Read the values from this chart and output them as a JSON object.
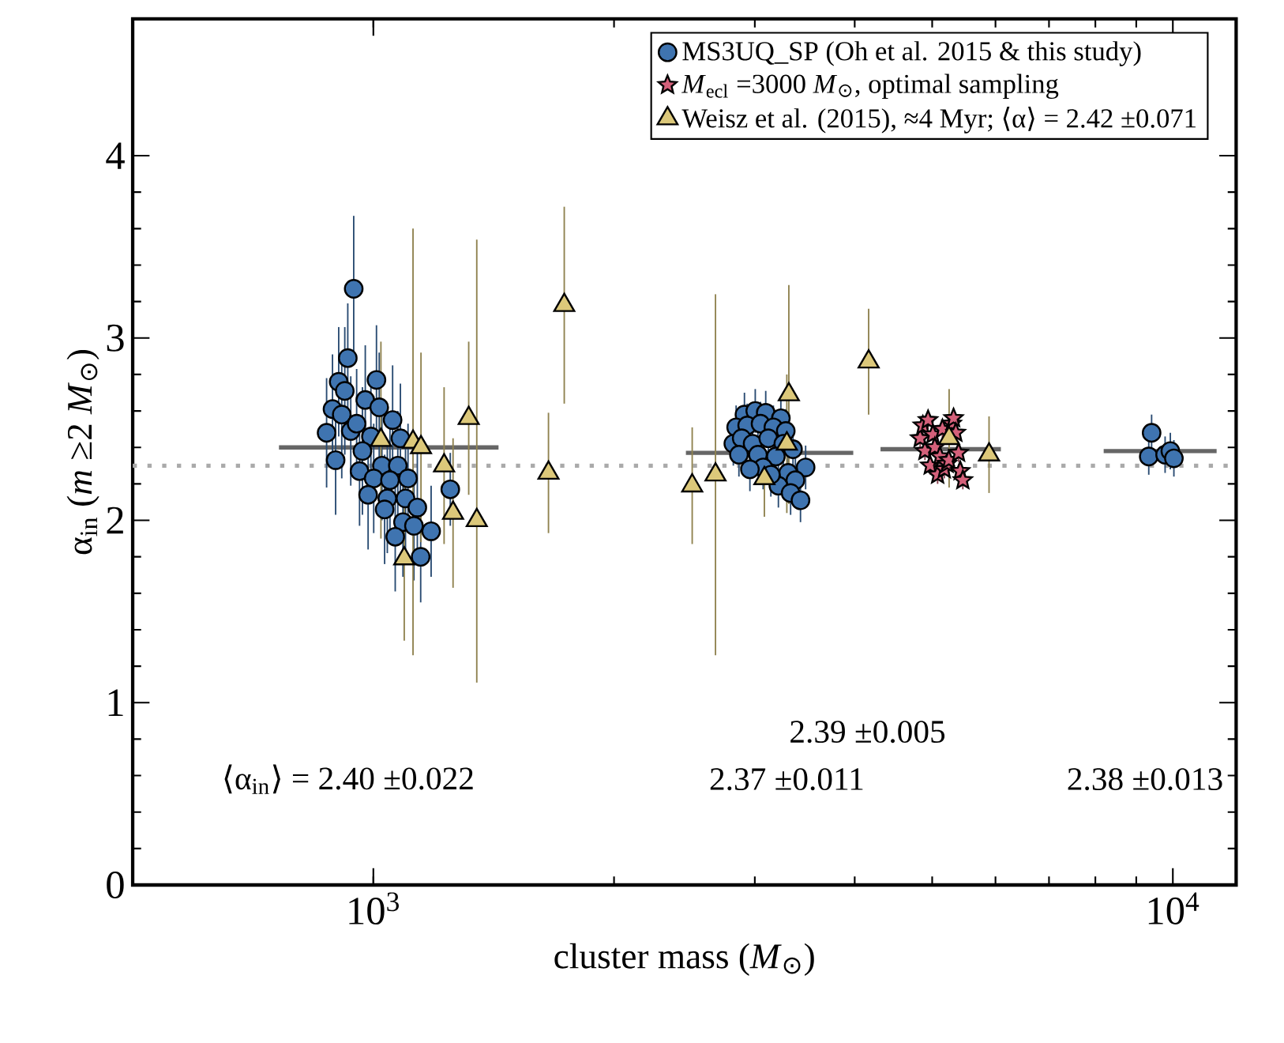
{
  "chart_data": {
    "type": "scatter",
    "xlabel": "cluster mass (*M*$_{⊙}$)",
    "ylabel": "α$_{in}$ (*m* ≥2 *M*$_{⊙}$)",
    "log": "x",
    "xlim": [
      500,
      12000
    ],
    "ylim": [
      0,
      4.75
    ],
    "xticks": [
      {
        "value": 1000,
        "label": "10$^{3}$"
      },
      {
        "value": 10000,
        "label": "10$^{4}$"
      }
    ],
    "yticks": [
      0,
      1,
      2,
      3,
      4
    ],
    "legend": "top right",
    "series": [
      {
        "name": "MS3UQ_SP (Oh et al. 2015 & this study)",
        "marker": "circle",
        "color": "#3f74b0",
        "x": [
          945,
          929,
          905,
          921,
          1009,
          889,
          913,
          977,
          1017,
          1057,
          874,
          937,
          953,
          993,
          1081,
          897,
          969,
          961,
          1025,
          1073,
          1105,
          1001,
          1049,
          985,
          1041,
          1097,
          1135,
          1033,
          1089,
          1124,
          1181,
          1065,
          1146,
          1248,
          2912,
          3004,
          3096,
          3234,
          2843,
          2935,
          3050,
          3165,
          3280,
          2820,
          2889,
          2981,
          3119,
          3257,
          3349,
          2866,
          3027,
          3188,
          3473,
          3073,
          3303,
          3372,
          3211,
          3326,
          3422,
          2958,
          3142,
          9407,
          9330,
          9780,
          9928,
          10030
        ],
        "values": [
          3.27,
          2.89,
          2.76,
          2.71,
          2.77,
          2.61,
          2.58,
          2.66,
          2.62,
          2.55,
          2.48,
          2.49,
          2.53,
          2.46,
          2.45,
          2.33,
          2.38,
          2.27,
          2.3,
          2.3,
          2.23,
          2.23,
          2.22,
          2.14,
          2.12,
          2.12,
          2.07,
          2.06,
          1.99,
          1.97,
          1.94,
          1.91,
          1.8,
          2.17,
          2.58,
          2.6,
          2.59,
          2.56,
          2.51,
          2.52,
          2.53,
          2.51,
          2.49,
          2.42,
          2.45,
          2.42,
          2.45,
          2.42,
          2.39,
          2.36,
          2.36,
          2.35,
          2.29,
          2.29,
          2.26,
          2.22,
          2.19,
          2.15,
          2.11,
          2.28,
          2.25,
          2.48,
          2.35,
          2.36,
          2.38,
          2.34
        ],
        "errors": [
          0.4,
          0.3,
          0.3,
          0.35,
          0.3,
          0.3,
          0.35,
          0.3,
          0.3,
          0.3,
          0.3,
          0.3,
          0.3,
          0.3,
          0.3,
          0.3,
          0.35,
          0.3,
          0.3,
          0.3,
          0.3,
          0.3,
          0.3,
          0.3,
          0.3,
          0.3,
          0.3,
          0.3,
          0.3,
          0.3,
          0.25,
          0.3,
          0.25,
          0.2,
          0.12,
          0.12,
          0.12,
          0.12,
          0.12,
          0.12,
          0.12,
          0.12,
          0.12,
          0.12,
          0.12,
          0.12,
          0.12,
          0.12,
          0.12,
          0.12,
          0.12,
          0.12,
          0.12,
          0.12,
          0.12,
          0.12,
          0.12,
          0.12,
          0.12,
          0.12,
          0.12,
          0.1,
          0.1,
          0.1,
          0.1,
          0.1
        ]
      },
      {
        "name": "*M*$_{ecl}$ =3000 *M*$_{⊙}$, optimal sampling",
        "marker": "star",
        "color": "#d4607a",
        "x": [
          4830,
          4868,
          4897,
          4941,
          4972,
          5010,
          5038,
          5079,
          5113,
          5150,
          5177,
          5219,
          5246,
          5290,
          5318,
          5352,
          5395,
          5421,
          5462
        ],
        "values": [
          2.45,
          2.52,
          2.38,
          2.55,
          2.3,
          2.47,
          2.4,
          2.25,
          2.35,
          2.5,
          2.28,
          2.31,
          2.33,
          2.53,
          2.56,
          2.48,
          2.37,
          2.27,
          2.22
        ],
        "errors": [
          0.05,
          0.05,
          0.05,
          0.05,
          0.05,
          0.05,
          0.05,
          0.05,
          0.05,
          0.05,
          0.05,
          0.05,
          0.05,
          0.05,
          0.05,
          0.05,
          0.05,
          0.05,
          0.05
        ]
      },
      {
        "name": "Weisz et al. (2015), ≈4 Myr; ⟨α⟩ = 2.42 ±0.071",
        "marker": "triangle",
        "color": "#dcc87a",
        "x": [
          1022,
          1121,
          1147,
          1226,
          1258,
          1316,
          1347,
          1093,
          1733,
          1656,
          2505,
          2679,
          3309,
          3290,
          3084,
          4164,
          5250,
          5890
        ],
        "values": [
          2.44,
          2.43,
          2.4,
          2.3,
          2.04,
          2.56,
          2.0,
          1.79,
          3.18,
          2.26,
          2.19,
          2.25,
          2.69,
          2.42,
          2.23,
          2.87,
          2.45,
          2.36
        ],
        "errors": [
          0.54,
          1.17,
          0.52,
          0.43,
          0.41,
          0.42,
          [
            1.11,
            3.54
          ],
          [
            1.34,
            2.24
          ],
          0.54,
          0.33,
          0.32,
          0.99,
          0.6,
          0.38,
          0.21,
          0.29,
          0.27,
          0.21
        ]
      },
      {
        "type": "line",
        "color": "#666666",
        "x": [
          762,
          1434
        ],
        "values": [
          2.4,
          2.4
        ]
      },
      {
        "type": "line",
        "color": "#666666",
        "x": [
          2460,
          3984
        ],
        "values": [
          2.37,
          2.37
        ]
      },
      {
        "type": "line",
        "color": "#666666",
        "x": [
          4309,
          6094
        ],
        "values": [
          2.39,
          2.39
        ]
      },
      {
        "type": "line",
        "color": "#666666",
        "x": [
          8194,
          11344
        ],
        "values": [
          2.38,
          2.38
        ]
      }
    ],
    "ref_lines": [
      {
        "axis": "y",
        "value": 2.3,
        "color": "#aaaaaa",
        "line_style": "dotted"
      }
    ],
    "annotations": [
      "⟨α$_{in}$⟩ = 2.40 ±0.022",
      "2.37 ±0.011",
      "2.39 ±0.005",
      "2.38 ±0.013"
    ]
  }
}
